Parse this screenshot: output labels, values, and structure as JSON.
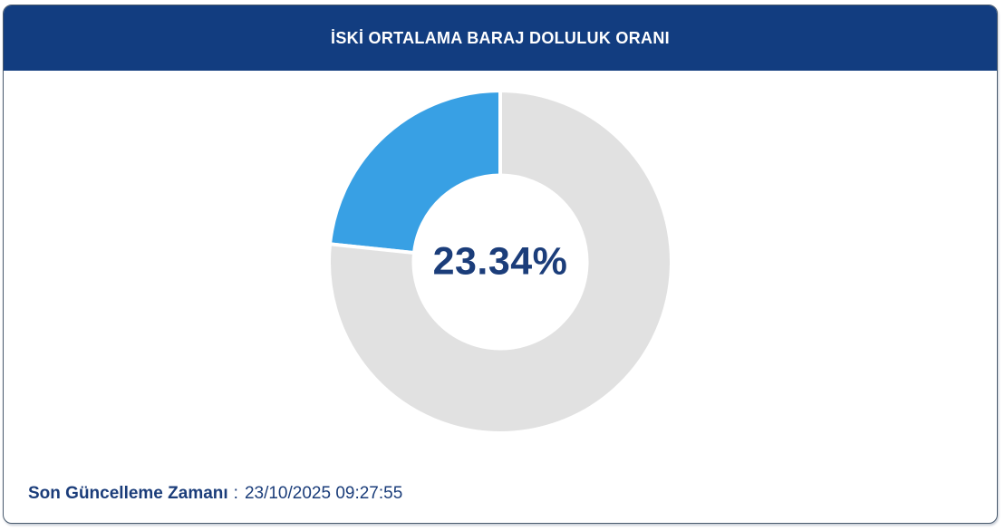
{
  "header": {
    "title": "İSKİ ORTALAMA BARAJ DOLULUK ORANI"
  },
  "footer": {
    "label": "Son Güncelleme Zamanı",
    "separator": ":",
    "timestamp": "23/10/2025 09:27:55"
  },
  "colors": {
    "header_bg": "#123d80",
    "accent_blue": "#38a0e4",
    "ring_gray": "#e1e1e1",
    "navy_text": "#1b3d7a",
    "card_border": "#4a5b6e",
    "segment_separator": "#ffffff"
  },
  "chart_data": {
    "type": "pie",
    "variant": "donut",
    "title": "İSKİ ORTALAMA BARAJ DOLULUK ORANI",
    "center_label": "23.34%",
    "series": [
      {
        "key": "filled",
        "value": 23.34,
        "color": "#38a0e4"
      },
      {
        "key": "empty",
        "value": 76.66,
        "color": "#e1e1e1"
      }
    ],
    "start_angle_deg": 90,
    "direction": "counterclockwise",
    "cutout_percent": 50,
    "legend": "none",
    "segment_border_color": "#ffffff",
    "segment_border_width": 4
  }
}
